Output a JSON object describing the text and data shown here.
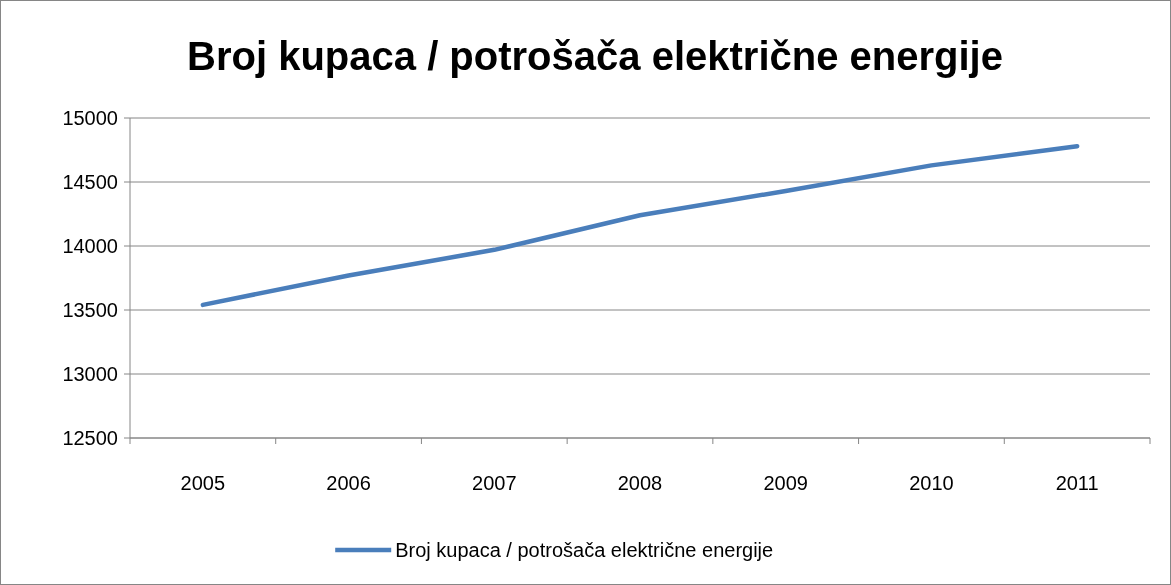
{
  "chart_data": {
    "type": "line",
    "title": "Broj kupaca / potrošača električne energije",
    "categories": [
      "2005",
      "2006",
      "2007",
      "2008",
      "2009",
      "2010",
      "2011"
    ],
    "series": [
      {
        "name": "Broj kupaca / potrošača električne energije",
        "color": "#4a7ebb",
        "values": [
          13540,
          13770,
          13970,
          14240,
          14430,
          14630,
          14780
        ]
      }
    ],
    "ylim": [
      12500,
      15000
    ],
    "yticks": [
      12500,
      13000,
      13500,
      14000,
      14500,
      15000
    ],
    "grid": "y",
    "legend": "bottom"
  }
}
